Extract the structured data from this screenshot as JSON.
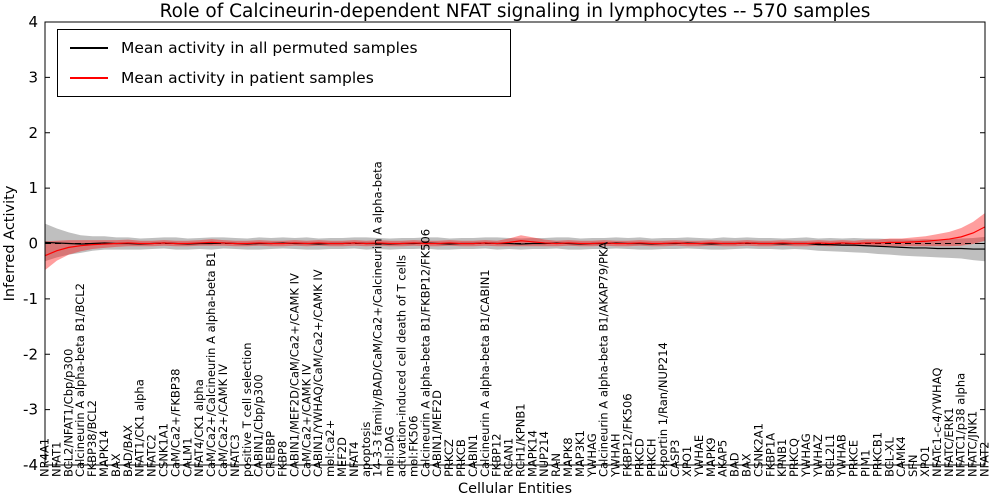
{
  "title": "Role of Calcineurin-dependent NFAT signaling in lymphocytes -- 570 samples",
  "legend": {
    "entries": [
      {
        "label": "Mean activity in all permuted samples",
        "color": "#000000"
      },
      {
        "label": "Mean activity in patient samples",
        "color": "#ff0000"
      }
    ],
    "position": "upper left"
  },
  "chart_data": {
    "type": "line",
    "title": "Role of Calcineurin-dependent NFAT signaling in lymphocytes -- 570 samples",
    "xlabel": "Cellular Entities",
    "ylabel": "Inferred Activity",
    "ylim": [
      -4,
      4
    ],
    "yticks": [
      -4,
      -3,
      -2,
      -1,
      0,
      1,
      2,
      3,
      4
    ],
    "grid": false,
    "zero_line_style": "dashed",
    "legend_position": "upper left",
    "categories": [
      "NR4A1",
      "NFAT1",
      "BCL2/NFAT1/Cbp/p300",
      "Calcineurin A alpha-beta B1/BCL2",
      "FKBP38/BCL2",
      "MAPK14",
      "BAX",
      "BAD/BAX",
      "NFAT1/CK1 alpha",
      "NFATC2",
      "CSNK1A1",
      "CaM/Ca2+/FKBP38",
      "CALM1",
      "NFAT4/CK1 alpha",
      "CaM/Ca2+/Calcineurin A alpha-beta B1",
      "CaM/Ca2+/CAMK IV",
      "NFATC3",
      "positive T cell selection",
      "CABIN1/Cbp/p300",
      "CREBBP",
      "FKBP8",
      "CABIN1/MEF2D/CaM/Ca2+/CAMK IV",
      "CaM/Ca2+/CAMK IV",
      "CABIN1/YWHAQ/CaM/Ca2+/CAMK IV",
      "mol:Ca2+",
      "MEF2D",
      "NFAT4",
      "apoptosis",
      "14-3-3 family/BAD/CaM/Ca2+/Calcineurin A alpha-beta",
      "mol:DAG",
      "activation-induced cell death of T cells",
      "mol:FK506",
      "Calcineurin A alpha-beta B1/FKBP12/FK506",
      "CABIN1/MEF2D",
      "PRKCZ",
      "PRKCB",
      "CABIN1",
      "Calcineurin A alpha-beta B1/CABIN1",
      "FKBP12",
      "RCAN1",
      "RCH1/KPNB1",
      "MAPK14",
      "NUP214",
      "RAN",
      "MAPK8",
      "MAP3K1",
      "YWHAG",
      "Calcineurin A alpha-beta B1/AKAP79/PKA",
      "YWHAH",
      "FKBP12/FK506",
      "PRKCD",
      "PRKCH",
      "Exportin 1/Ran/NUP214",
      "CASP3",
      "XPO1",
      "YWHAE",
      "MAPK9",
      "AKAP5",
      "BAD",
      "BAX",
      "CSNK2A1",
      "FKBP1A",
      "KPNB1",
      "PRKCQ",
      "YWHAG",
      "YWHAZ",
      "BCL2L1",
      "YWHAB",
      "PRKCE",
      "PIM1",
      "PRKCB1",
      "BCL-XL",
      "CAMK4",
      "SFN",
      "XPO1",
      "NFATc1-c-4/YWHAQ",
      "NFATC/ERK1",
      "NFATC1/p38 alpha",
      "NFATC/JNK1",
      "NFAT2"
    ],
    "series": [
      {
        "key": "permuted",
        "name": "Mean activity in all permuted samples",
        "color": "#000000",
        "band_color": "rgba(0,0,0,0.25)",
        "values": [
          0.02,
          0.01,
          0.0,
          -0.01,
          0.0,
          0.01,
          0.0,
          0.0,
          -0.01,
          0.0,
          0.01,
          0.0,
          -0.01,
          0.0,
          0.0,
          0.01,
          0.0,
          -0.01,
          0.0,
          0.0,
          0.01,
          0.0,
          0.0,
          -0.01,
          0.0,
          0.0,
          0.01,
          0.0,
          0.0,
          -0.01,
          0.0,
          0.0,
          0.01,
          0.0,
          -0.01,
          0.0,
          0.0,
          0.01,
          0.0,
          0.0,
          -0.01,
          0.0,
          0.0,
          0.01,
          0.0,
          -0.01,
          0.0,
          0.0,
          0.01,
          0.0,
          0.0,
          -0.01,
          0.0,
          0.0,
          0.01,
          0.0,
          -0.01,
          0.0,
          0.0,
          0.01,
          0.0,
          0.0,
          -0.01,
          0.0,
          0.0,
          -0.02,
          -0.02,
          -0.03,
          -0.03,
          -0.04,
          -0.05,
          -0.06,
          -0.07,
          -0.08,
          -0.08,
          -0.09,
          -0.09,
          -0.09,
          -0.1,
          -0.1
        ],
        "std": [
          0.34,
          0.26,
          0.2,
          0.16,
          0.13,
          0.12,
          0.11,
          0.11,
          0.1,
          0.1,
          0.1,
          0.11,
          0.1,
          0.1,
          0.11,
          0.1,
          0.1,
          0.1,
          0.11,
          0.1,
          0.1,
          0.1,
          0.11,
          0.1,
          0.1,
          0.1,
          0.1,
          0.11,
          0.1,
          0.1,
          0.1,
          0.1,
          0.1,
          0.11,
          0.1,
          0.1,
          0.1,
          0.1,
          0.11,
          0.1,
          0.1,
          0.1,
          0.1,
          0.1,
          0.11,
          0.1,
          0.1,
          0.1,
          0.1,
          0.1,
          0.11,
          0.1,
          0.1,
          0.1,
          0.1,
          0.1,
          0.1,
          0.11,
          0.1,
          0.1,
          0.1,
          0.1,
          0.1,
          0.1,
          0.11,
          0.11,
          0.12,
          0.12,
          0.13,
          0.13,
          0.14,
          0.14,
          0.15,
          0.15,
          0.16,
          0.16,
          0.17,
          0.18,
          0.2,
          0.22
        ]
      },
      {
        "key": "patient",
        "name": "Mean activity in patient samples",
        "color": "#ff0000",
        "band_color": "rgba(255,0,0,0.38)",
        "values": [
          -0.22,
          -0.13,
          -0.07,
          -0.04,
          -0.02,
          -0.01,
          0.0,
          0.01,
          0.0,
          0.0,
          0.01,
          0.0,
          0.0,
          0.01,
          0.02,
          0.01,
          0.0,
          0.0,
          0.01,
          0.0,
          0.0,
          0.01,
          0.0,
          0.01,
          0.0,
          0.0,
          0.01,
          0.0,
          0.01,
          0.0,
          0.0,
          0.01,
          0.0,
          0.0,
          0.01,
          0.0,
          0.0,
          0.01,
          0.0,
          0.02,
          0.05,
          0.03,
          0.01,
          0.0,
          0.01,
          0.0,
          0.0,
          0.01,
          0.0,
          0.0,
          0.01,
          0.0,
          0.0,
          0.01,
          0.0,
          0.0,
          0.01,
          0.0,
          0.0,
          0.01,
          0.0,
          0.0,
          0.01,
          0.0,
          0.0,
          0.01,
          0.0,
          0.01,
          0.0,
          0.01,
          0.01,
          0.02,
          0.02,
          0.03,
          0.04,
          0.06,
          0.08,
          0.12,
          0.19,
          0.3
        ],
        "std": [
          0.26,
          0.18,
          0.13,
          0.1,
          0.08,
          0.07,
          0.06,
          0.06,
          0.05,
          0.05,
          0.05,
          0.05,
          0.05,
          0.05,
          0.06,
          0.05,
          0.05,
          0.05,
          0.05,
          0.05,
          0.05,
          0.05,
          0.05,
          0.05,
          0.05,
          0.05,
          0.05,
          0.05,
          0.05,
          0.05,
          0.05,
          0.05,
          0.05,
          0.05,
          0.05,
          0.05,
          0.05,
          0.05,
          0.05,
          0.07,
          0.1,
          0.08,
          0.06,
          0.05,
          0.05,
          0.05,
          0.05,
          0.05,
          0.05,
          0.05,
          0.05,
          0.05,
          0.05,
          0.05,
          0.05,
          0.05,
          0.05,
          0.05,
          0.05,
          0.05,
          0.05,
          0.05,
          0.05,
          0.05,
          0.05,
          0.05,
          0.05,
          0.05,
          0.05,
          0.06,
          0.06,
          0.07,
          0.07,
          0.08,
          0.09,
          0.11,
          0.13,
          0.16,
          0.2,
          0.25
        ]
      }
    ]
  }
}
